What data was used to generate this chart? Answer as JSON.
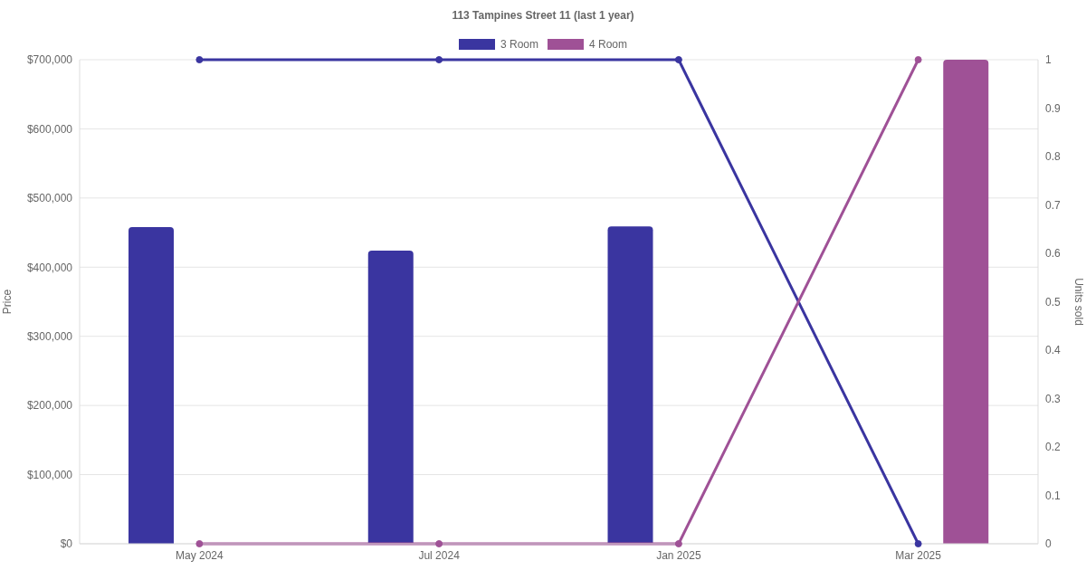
{
  "chart_data": {
    "type": "bar",
    "title": "113 Tampines Street 11 (last 1 year)",
    "categories": [
      "May 2024",
      "Jul 2024",
      "Jan 2025",
      "Mar 2025"
    ],
    "series": [
      {
        "name": "3 Room",
        "color": "#3a35a0",
        "values": [
          458000,
          424000,
          459000,
          null
        ]
      },
      {
        "name": "4 Room",
        "color": "#9f5196",
        "values": [
          null,
          null,
          null,
          700000
        ]
      },
      {
        "type": "line",
        "axis": "y2",
        "color": "#3a35a0",
        "values": [
          1,
          1,
          1,
          0
        ]
      },
      {
        "type": "line",
        "axis": "y2",
        "color": "#9f5196",
        "values": [
          0,
          0,
          0,
          1
        ]
      }
    ],
    "ylabel": "Price",
    "y2label": "Units sold",
    "ylim": [
      0,
      700000
    ],
    "yticks": [
      {
        "value": 0,
        "label": "$0"
      },
      {
        "value": 100000,
        "label": "$100,000"
      },
      {
        "value": 200000,
        "label": "$200,000"
      },
      {
        "value": 300000,
        "label": "$300,000"
      },
      {
        "value": 400000,
        "label": "$400,000"
      },
      {
        "value": 500000,
        "label": "$500,000"
      },
      {
        "value": 600000,
        "label": "$600,000"
      },
      {
        "value": 700000,
        "label": "$700,000"
      }
    ],
    "y2lim": [
      0,
      1
    ],
    "y2ticks": [
      0,
      0.1,
      0.2,
      0.3,
      0.4,
      0.5,
      0.6,
      0.7,
      0.8,
      0.9,
      1
    ],
    "grid": "y",
    "legend": "top",
    "marker": "circle"
  }
}
